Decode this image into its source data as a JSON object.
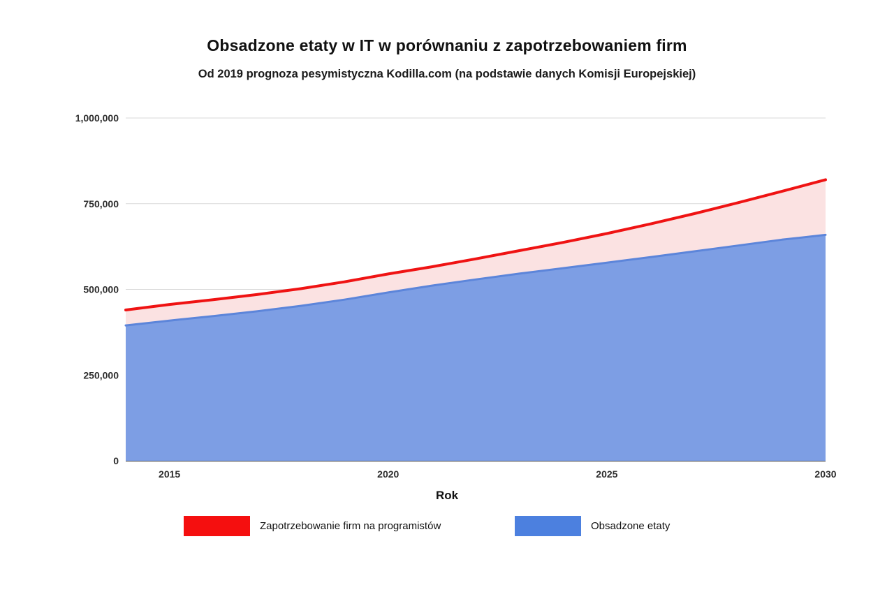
{
  "page": {
    "title": "Obsadzone etaty w IT w porównaniu z zapotrzebowaniem firm",
    "subtitle": "Od 2019 prognoza pesymistyczna Kodilla.com (na podstawie danych Komisji Europejskiej)"
  },
  "chart_data": {
    "type": "area",
    "title": "Obsadzone etaty w IT w porównaniu z zapotrzebowaniem firm",
    "subtitle": "Od 2019 prognoza pesymistyczna Kodilla.com (na podstawie danych Komisji Europejskiej)",
    "xlabel": "Rok",
    "ylabel": "",
    "grid": true,
    "legend_position": "bottom",
    "x": [
      2014,
      2015,
      2016,
      2017,
      2018,
      2019,
      2020,
      2021,
      2022,
      2023,
      2024,
      2025,
      2026,
      2027,
      2028,
      2029,
      2030
    ],
    "xlim": [
      2014,
      2030
    ],
    "ylim": [
      0,
      1000000
    ],
    "series": [
      {
        "name": "Zapotrzebowanie firm na programistów",
        "color": "#ef1313",
        "fill": "#fbe2e2",
        "legend_color": "#f50f0f",
        "values": [
          440000,
          456000,
          470000,
          485000,
          502000,
          522000,
          545000,
          566000,
          589000,
          613000,
          637000,
          663000,
          691000,
          721000,
          753000,
          786000,
          820000
        ]
      },
      {
        "name": "Obsadzone etaty",
        "color": "#5c85da",
        "fill": "#7d9ee4",
        "legend_color": "#4c80df",
        "values": [
          395000,
          409000,
          422000,
          436000,
          452000,
          470000,
          491000,
          511000,
          529000,
          546000,
          562000,
          578000,
          594000,
          611000,
          628000,
          645000,
          659000
        ]
      }
    ],
    "yticks": [
      {
        "value": 0,
        "label": "0"
      },
      {
        "value": 250000,
        "label": "250,000"
      },
      {
        "value": 500000,
        "label": "500,000"
      },
      {
        "value": 750000,
        "label": "750,000"
      },
      {
        "value": 1000000,
        "label": "1,000,000"
      }
    ],
    "xticks": [
      {
        "value": 2015,
        "label": "2015"
      },
      {
        "value": 2020,
        "label": "2020"
      },
      {
        "value": 2025,
        "label": "2025"
      },
      {
        "value": 2030,
        "label": "2030"
      }
    ]
  },
  "colors": {
    "gridline": "#d9d9d9",
    "axis": "#4a4a4a",
    "background": "#ffffff"
  }
}
